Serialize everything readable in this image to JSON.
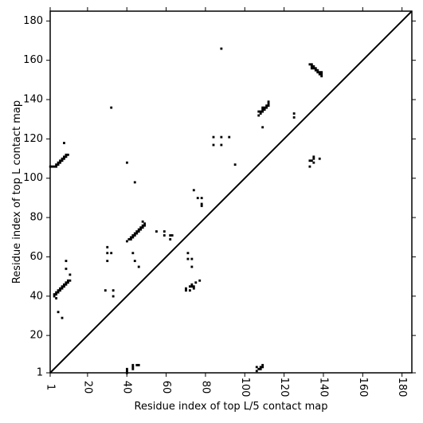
{
  "chart_data": {
    "type": "heatmap",
    "title": "",
    "xlabel": "Residue index of top L/5 contact map",
    "ylabel": "Residue index of top L contact map",
    "xlim": [
      1,
      185
    ],
    "ylim": [
      1,
      185
    ],
    "x_ticks": [
      1,
      20,
      40,
      60,
      80,
      100,
      120,
      140,
      160,
      180
    ],
    "x_tick_labels": [
      "1",
      "20",
      "40",
      "60",
      "80",
      "100",
      "120",
      "140",
      "160",
      "180"
    ],
    "y_ticks": [
      1,
      20,
      40,
      60,
      80,
      100,
      120,
      140,
      160,
      180
    ],
    "y_tick_labels": [
      "1",
      "20",
      "40",
      "60",
      "80",
      "100",
      "120",
      "140",
      "160",
      "180"
    ],
    "diagonal": true,
    "grid": false,
    "colors": {
      "contact": "#000000",
      "background": "#ffffff",
      "axis": "#000000"
    },
    "upper_triangle_contacts": [
      [
        1,
        106
      ],
      [
        2,
        106
      ],
      [
        3,
        106
      ],
      [
        4,
        106
      ],
      [
        4,
        107
      ],
      [
        5,
        107
      ],
      [
        5,
        108
      ],
      [
        6,
        108
      ],
      [
        6,
        109
      ],
      [
        7,
        109
      ],
      [
        7,
        110
      ],
      [
        8,
        110
      ],
      [
        8,
        111
      ],
      [
        9,
        111
      ],
      [
        9,
        112
      ],
      [
        10,
        112
      ],
      [
        8,
        118
      ],
      [
        3,
        40
      ],
      [
        3,
        41
      ],
      [
        4,
        41
      ],
      [
        4,
        42
      ],
      [
        5,
        42
      ],
      [
        5,
        43
      ],
      [
        6,
        43
      ],
      [
        6,
        44
      ],
      [
        7,
        44
      ],
      [
        7,
        45
      ],
      [
        8,
        45
      ],
      [
        8,
        46
      ],
      [
        9,
        46
      ],
      [
        9,
        47
      ],
      [
        10,
        47
      ],
      [
        10,
        48
      ],
      [
        11,
        48
      ],
      [
        4,
        39
      ],
      [
        9,
        54
      ],
      [
        9,
        58
      ],
      [
        11,
        51
      ],
      [
        5,
        32
      ],
      [
        7,
        29
      ],
      [
        29,
        43
      ],
      [
        30,
        58
      ],
      [
        30,
        62
      ],
      [
        30,
        65
      ],
      [
        32,
        62
      ],
      [
        32,
        136
      ],
      [
        33,
        40
      ],
      [
        33,
        43
      ],
      [
        40,
        68
      ],
      [
        41,
        69
      ],
      [
        42,
        69
      ],
      [
        42,
        70
      ],
      [
        43,
        70
      ],
      [
        43,
        71
      ],
      [
        44,
        71
      ],
      [
        44,
        72
      ],
      [
        45,
        72
      ],
      [
        45,
        73
      ],
      [
        46,
        73
      ],
      [
        46,
        74
      ],
      [
        47,
        74
      ],
      [
        47,
        75
      ],
      [
        48,
        75
      ],
      [
        48,
        76
      ],
      [
        49,
        76
      ],
      [
        49,
        77
      ],
      [
        48,
        78
      ],
      [
        40,
        108
      ],
      [
        43,
        62
      ],
      [
        44,
        58
      ],
      [
        44,
        98
      ],
      [
        46,
        55
      ],
      [
        55,
        73
      ],
      [
        59,
        71
      ],
      [
        59,
        73
      ],
      [
        62,
        69
      ],
      [
        62,
        71
      ],
      [
        63,
        71
      ],
      [
        70,
        43
      ],
      [
        70,
        44
      ],
      [
        71,
        59
      ],
      [
        71,
        62
      ],
      [
        72,
        43
      ],
      [
        72,
        45
      ],
      [
        73,
        45
      ],
      [
        73,
        46
      ],
      [
        73,
        55
      ],
      [
        73,
        59
      ],
      [
        74,
        44
      ],
      [
        74,
        45
      ],
      [
        74,
        94
      ],
      [
        75,
        47
      ],
      [
        76,
        90
      ],
      [
        77,
        48
      ],
      [
        78,
        86
      ],
      [
        78,
        87
      ],
      [
        78,
        90
      ],
      [
        84,
        117
      ],
      [
        84,
        121
      ],
      [
        88,
        117
      ],
      [
        88,
        121
      ],
      [
        88,
        166
      ],
      [
        92,
        121
      ],
      [
        95,
        107
      ],
      [
        107,
        132
      ],
      [
        107,
        134
      ],
      [
        108,
        133
      ],
      [
        108,
        134
      ],
      [
        109,
        126
      ],
      [
        109,
        134
      ],
      [
        109,
        135
      ],
      [
        109,
        136
      ],
      [
        110,
        135
      ],
      [
        110,
        136
      ],
      [
        111,
        136
      ],
      [
        111,
        137
      ],
      [
        112,
        137
      ],
      [
        112,
        138
      ],
      [
        112,
        139
      ],
      [
        125,
        131
      ],
      [
        125,
        133
      ],
      [
        133,
        158
      ],
      [
        134,
        156
      ],
      [
        134,
        157
      ],
      [
        134,
        158
      ],
      [
        135,
        156
      ],
      [
        135,
        157
      ],
      [
        136,
        155
      ],
      [
        136,
        156
      ],
      [
        137,
        154
      ],
      [
        137,
        155
      ],
      [
        138,
        154
      ],
      [
        138,
        153
      ],
      [
        139,
        152
      ],
      [
        139,
        153
      ],
      [
        139,
        154
      ]
    ],
    "lower_triangle_contacts": [
      [
        40,
        1
      ],
      [
        40,
        2
      ],
      [
        40,
        3
      ],
      [
        43,
        3
      ],
      [
        43,
        4
      ],
      [
        43,
        5
      ],
      [
        45,
        5
      ],
      [
        46,
        5
      ],
      [
        106,
        2
      ],
      [
        107,
        3
      ],
      [
        108,
        3
      ],
      [
        108,
        4
      ],
      [
        109,
        4
      ],
      [
        109,
        5
      ],
      [
        106,
        4
      ],
      [
        133,
        106
      ],
      [
        133,
        109
      ],
      [
        134,
        109
      ],
      [
        135,
        108
      ],
      [
        135,
        110
      ],
      [
        135,
        111
      ],
      [
        138,
        110
      ]
    ]
  }
}
